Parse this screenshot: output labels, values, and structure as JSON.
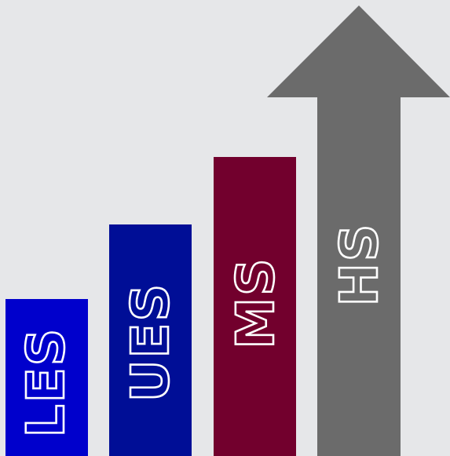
{
  "colors": {
    "background": "#e6e7e9",
    "les": "#0000cc",
    "ues": "#000e96",
    "ms": "#72002d",
    "hs": "#6b6b6b",
    "label_outline": "#ffffff"
  },
  "steps": [
    {
      "key": "les",
      "label": "LES",
      "level": 1
    },
    {
      "key": "ues",
      "label": "UES",
      "level": 2
    },
    {
      "key": "ms",
      "label": "MS",
      "level": 3
    },
    {
      "key": "hs",
      "label": "HS",
      "level": 4,
      "shape": "arrow-up"
    }
  ]
}
